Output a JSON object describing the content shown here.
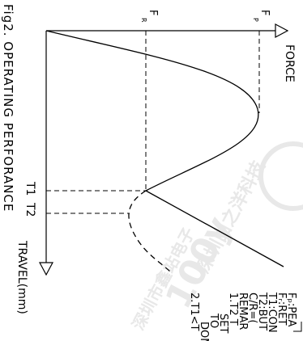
{
  "figure": {
    "title": "Fig2.  OPERATING  PERFORANCE",
    "axis_x_label": "FORCE",
    "axis_y_label": "TRAVEL(mm)",
    "marker_fp": "F",
    "marker_fp_sub": "P",
    "marker_fr": "F",
    "marker_fr_sub": "R",
    "marker_t1": "T1",
    "marker_t2": "T2"
  },
  "notes": [
    "Fₚ:PEA",
    "Fᵣ:RET",
    "T1:CON",
    "T2:BUT",
    "C/R=(",
    "REMAR",
    "1.T2 T",
    "SET",
    "TO",
    "DOM",
    "2.T1<T"
  ],
  "watermark": {
    "line1": "深圳由之洋科技",
    "line2": "100y",
    "line3": "深圳市鑫站电子"
  },
  "colors": {
    "line": "#000000",
    "watermark": "#e6e6e6",
    "background": "#ffffff"
  }
}
